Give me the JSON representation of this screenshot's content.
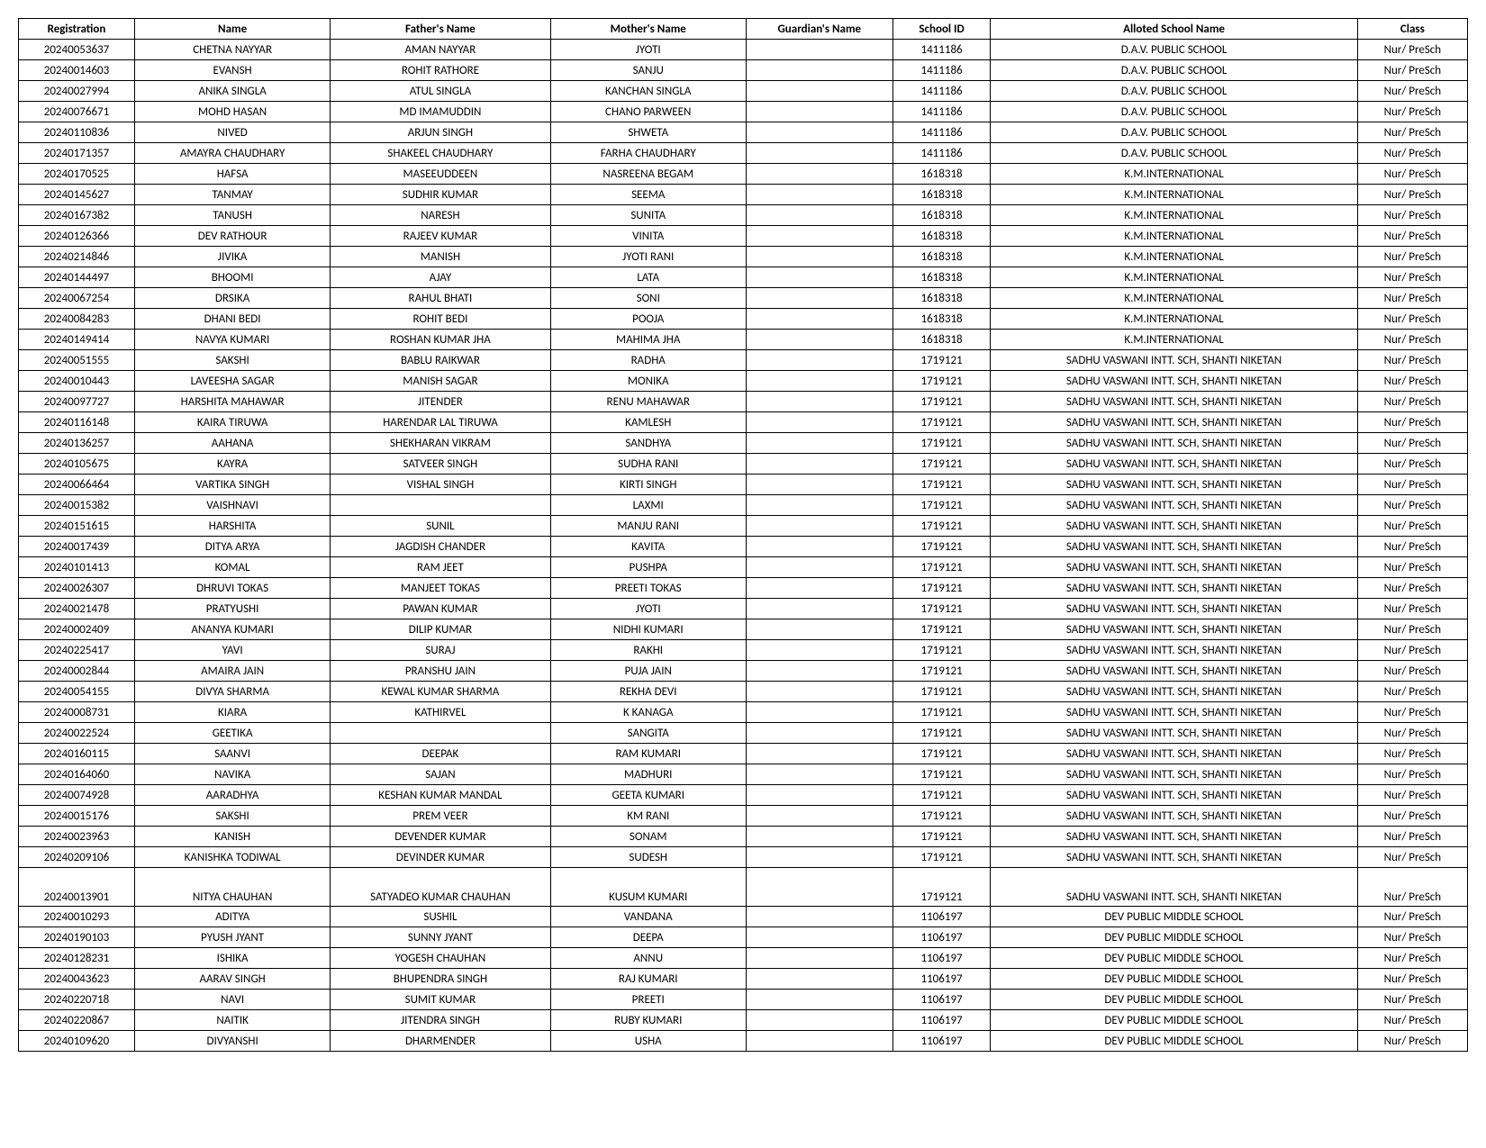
{
  "columns": [
    "Registration",
    "Name",
    "Father's Name",
    "Mother's Name",
    "Guardian's Name",
    "School ID",
    "Alloted School Name",
    "Class"
  ],
  "rows": [
    [
      "20240053637",
      "CHETNA NAYYAR",
      "AMAN NAYYAR",
      "JYOTI",
      "",
      "1411186",
      "D.A.V. PUBLIC SCHOOL",
      "Nur/ PreSch"
    ],
    [
      "20240014603",
      "EVANSH",
      "ROHIT RATHORE",
      "SANJU",
      "",
      "1411186",
      "D.A.V. PUBLIC SCHOOL",
      "Nur/ PreSch"
    ],
    [
      "20240027994",
      "ANIKA SINGLA",
      "ATUL SINGLA",
      "KANCHAN SINGLA",
      "",
      "1411186",
      "D.A.V. PUBLIC SCHOOL",
      "Nur/ PreSch"
    ],
    [
      "20240076671",
      "MOHD HASAN",
      "MD IMAMUDDIN",
      "CHANO PARWEEN",
      "",
      "1411186",
      "D.A.V. PUBLIC SCHOOL",
      "Nur/ PreSch"
    ],
    [
      "20240110836",
      "NIVED",
      "ARJUN SINGH",
      "SHWETA",
      "",
      "1411186",
      "D.A.V. PUBLIC SCHOOL",
      "Nur/ PreSch"
    ],
    [
      "20240171357",
      "AMAYRA  CHAUDHARY",
      "SHAKEEL CHAUDHARY",
      "FARHA CHAUDHARY",
      "",
      "1411186",
      "D.A.V. PUBLIC SCHOOL",
      "Nur/ PreSch"
    ],
    [
      "20240170525",
      "HAFSA",
      "MASEEUDDEEN",
      "NASREENA BEGAM",
      "",
      "1618318",
      "K.M.INTERNATIONAL",
      "Nur/ PreSch"
    ],
    [
      "20240145627",
      "TANMAY",
      "SUDHIR KUMAR",
      "SEEMA",
      "",
      "1618318",
      "K.M.INTERNATIONAL",
      "Nur/ PreSch"
    ],
    [
      "20240167382",
      "TANUSH",
      "NARESH",
      "SUNITA",
      "",
      "1618318",
      "K.M.INTERNATIONAL",
      "Nur/ PreSch"
    ],
    [
      "20240126366",
      "DEV  RATHOUR",
      "RAJEEV KUMAR",
      "VINITA",
      "",
      "1618318",
      "K.M.INTERNATIONAL",
      "Nur/ PreSch"
    ],
    [
      "20240214846",
      "JIVIKA",
      "MANISH",
      "JYOTI RANI",
      "",
      "1618318",
      "K.M.INTERNATIONAL",
      "Nur/ PreSch"
    ],
    [
      "20240144497",
      "BHOOMI",
      "AJAY",
      "LATA",
      "",
      "1618318",
      "K.M.INTERNATIONAL",
      "Nur/ PreSch"
    ],
    [
      "20240067254",
      "DRSIKA",
      "RAHUL BHATI",
      "SONI",
      "",
      "1618318",
      "K.M.INTERNATIONAL",
      "Nur/ PreSch"
    ],
    [
      "20240084283",
      "DHANI  BEDI",
      "ROHIT BEDI",
      "POOJA",
      "",
      "1618318",
      "K.M.INTERNATIONAL",
      "Nur/ PreSch"
    ],
    [
      "20240149414",
      "NAVYA  KUMARI",
      "ROSHAN KUMAR JHA",
      "MAHIMA JHA",
      "",
      "1618318",
      "K.M.INTERNATIONAL",
      "Nur/ PreSch"
    ],
    [
      "20240051555",
      "SAKSHI",
      "BABLU RAIKWAR",
      "RADHA",
      "",
      "1719121",
      "SADHU VASWANI INTT. SCH, SHANTI NIKETAN",
      "Nur/ PreSch"
    ],
    [
      "20240010443",
      "LAVEESHA  SAGAR",
      "MANISH SAGAR",
      "MONIKA",
      "",
      "1719121",
      "SADHU VASWANI INTT. SCH, SHANTI NIKETAN",
      "Nur/ PreSch"
    ],
    [
      "20240097727",
      "HARSHITA  MAHAWAR",
      "JITENDER",
      "RENU MAHAWAR",
      "",
      "1719121",
      "SADHU VASWANI INTT. SCH, SHANTI NIKETAN",
      "Nur/ PreSch"
    ],
    [
      "20240116148",
      "KAIRA  TIRUWA",
      "HARENDAR LAL TIRUWA",
      "KAMLESH",
      "",
      "1719121",
      "SADHU VASWANI INTT. SCH, SHANTI NIKETAN",
      "Nur/ PreSch"
    ],
    [
      "20240136257",
      "AAHANA",
      "SHEKHARAN VIKRAM",
      "SANDHYA",
      "",
      "1719121",
      "SADHU VASWANI INTT. SCH, SHANTI NIKETAN",
      "Nur/ PreSch"
    ],
    [
      "20240105675",
      "KAYRA",
      "SATVEER SINGH",
      "SUDHA RANI",
      "",
      "1719121",
      "SADHU VASWANI INTT. SCH, SHANTI NIKETAN",
      "Nur/ PreSch"
    ],
    [
      "20240066464",
      "VARTIKA SINGH",
      "VISHAL SINGH",
      "KIRTI SINGH",
      "",
      "1719121",
      "SADHU VASWANI INTT. SCH, SHANTI NIKETAN",
      "Nur/ PreSch"
    ],
    [
      "20240015382",
      "VAISHNAVI",
      "",
      "LAXMI",
      "",
      "1719121",
      "SADHU VASWANI INTT. SCH, SHANTI NIKETAN",
      "Nur/ PreSch"
    ],
    [
      "20240151615",
      "HARSHITA",
      "SUNIL",
      "MANJU RANI",
      "",
      "1719121",
      "SADHU VASWANI INTT. SCH, SHANTI NIKETAN",
      "Nur/ PreSch"
    ],
    [
      "20240017439",
      "DITYA  ARYA",
      "JAGDISH CHANDER",
      "KAVITA",
      "",
      "1719121",
      "SADHU VASWANI INTT. SCH, SHANTI NIKETAN",
      "Nur/ PreSch"
    ],
    [
      "20240101413",
      "KOMAL",
      "RAM JEET",
      "PUSHPA",
      "",
      "1719121",
      "SADHU VASWANI INTT. SCH, SHANTI NIKETAN",
      "Nur/ PreSch"
    ],
    [
      "20240026307",
      "DHRUVI  TOKAS",
      "MANJEET TOKAS",
      "PREETI TOKAS",
      "",
      "1719121",
      "SADHU VASWANI INTT. SCH, SHANTI NIKETAN",
      "Nur/ PreSch"
    ],
    [
      "20240021478",
      "PRATYUSHI",
      "PAWAN KUMAR",
      "JYOTI",
      "",
      "1719121",
      "SADHU VASWANI INTT. SCH, SHANTI NIKETAN",
      "Nur/ PreSch"
    ],
    [
      "20240002409",
      "ANANYA  KUMARI",
      "DILIP KUMAR",
      "NIDHI KUMARI",
      "",
      "1719121",
      "SADHU VASWANI INTT. SCH, SHANTI NIKETAN",
      "Nur/ PreSch"
    ],
    [
      "20240225417",
      "YAVI",
      "SURAJ",
      "RAKHI",
      "",
      "1719121",
      "SADHU VASWANI INTT. SCH, SHANTI NIKETAN",
      "Nur/ PreSch"
    ],
    [
      "20240002844",
      "AMAIRA  JAIN",
      "PRANSHU JAIN",
      "PUJA JAIN",
      "",
      "1719121",
      "SADHU VASWANI INTT. SCH, SHANTI NIKETAN",
      "Nur/ PreSch"
    ],
    [
      "20240054155",
      "DIVYA  SHARMA",
      "KEWAL KUMAR SHARMA",
      "REKHA DEVI",
      "",
      "1719121",
      "SADHU VASWANI INTT. SCH, SHANTI NIKETAN",
      "Nur/ PreSch"
    ],
    [
      "20240008731",
      "KIARA",
      "KATHIRVEL",
      "K KANAGA",
      "",
      "1719121",
      "SADHU VASWANI INTT. SCH, SHANTI NIKETAN",
      "Nur/ PreSch"
    ],
    [
      "20240022524",
      "GEETIKA",
      "",
      "SANGITA",
      "",
      "1719121",
      "SADHU VASWANI INTT. SCH, SHANTI NIKETAN",
      "Nur/ PreSch"
    ],
    [
      "20240160115",
      "SAANVI",
      "DEEPAK",
      "RAM KUMARI",
      "",
      "1719121",
      "SADHU VASWANI INTT. SCH, SHANTI NIKETAN",
      "Nur/ PreSch"
    ],
    [
      "20240164060",
      "NAVIKA",
      "SAJAN",
      "MADHURI",
      "",
      "1719121",
      "SADHU VASWANI INTT. SCH, SHANTI NIKETAN",
      "Nur/ PreSch"
    ],
    [
      "20240074928",
      "AARADHYA",
      "KESHAN KUMAR MANDAL",
      "GEETA KUMARI",
      "",
      "1719121",
      "SADHU VASWANI INTT. SCH, SHANTI NIKETAN",
      "Nur/ PreSch"
    ],
    [
      "20240015176",
      "SAKSHI",
      "PREM VEER",
      "KM RANI",
      "",
      "1719121",
      "SADHU VASWANI INTT. SCH, SHANTI NIKETAN",
      "Nur/ PreSch"
    ],
    [
      "20240023963",
      "KANISH",
      "DEVENDER KUMAR",
      "SONAM",
      "",
      "1719121",
      "SADHU VASWANI INTT. SCH, SHANTI NIKETAN",
      "Nur/ PreSch"
    ],
    [
      "20240209106",
      "KANISHKA  TODIWAL",
      "DEVINDER KUMAR",
      "SUDESH",
      "",
      "1719121",
      "SADHU VASWANI INTT. SCH, SHANTI NIKETAN",
      "Nur/ PreSch"
    ],
    [
      "20240013901",
      "NITYA  CHAUHAN",
      "SATYADEO KUMAR CHAUHAN",
      "KUSUM KUMARI",
      "",
      "1719121",
      "SADHU VASWANI INTT. SCH, SHANTI NIKETAN",
      "Nur/ PreSch"
    ],
    [
      "20240010293",
      "ADITYA",
      "SUSHIL",
      "VANDANA",
      "",
      "1106197",
      "DEV PUBLIC MIDDLE SCHOOL",
      "Nur/ PreSch"
    ],
    [
      "20240190103",
      "PYUSH  JYANT",
      "SUNNY JYANT",
      "DEEPA",
      "",
      "1106197",
      "DEV PUBLIC MIDDLE SCHOOL",
      "Nur/ PreSch"
    ],
    [
      "20240128231",
      "ISHIKA",
      "YOGESH CHAUHAN",
      "ANNU",
      "",
      "1106197",
      "DEV PUBLIC MIDDLE SCHOOL",
      "Nur/ PreSch"
    ],
    [
      "20240043623",
      "AARAV  SINGH",
      "BHUPENDRA SINGH",
      "RAJ KUMARI",
      "",
      "1106197",
      "DEV PUBLIC MIDDLE SCHOOL",
      "Nur/ PreSch"
    ],
    [
      "20240220718",
      "NAVI",
      "SUMIT KUMAR",
      "PREETI",
      "",
      "1106197",
      "DEV PUBLIC MIDDLE SCHOOL",
      "Nur/ PreSch"
    ],
    [
      "20240220867",
      "NAITIK",
      "JITENDRA SINGH",
      "RUBY KUMARI",
      "",
      "1106197",
      "DEV PUBLIC MIDDLE SCHOOL",
      "Nur/ PreSch"
    ],
    [
      "20240109620",
      "DIVYANSHI",
      "DHARMENDER",
      "USHA",
      "",
      "1106197",
      "DEV PUBLIC MIDDLE SCHOOL",
      "Nur/ PreSch"
    ]
  ],
  "tall_row_index": 40,
  "col_classes": [
    "col-reg",
    "col-name",
    "col-father",
    "col-mother",
    "col-guard",
    "col-school",
    "col-alloted",
    "col-class"
  ]
}
